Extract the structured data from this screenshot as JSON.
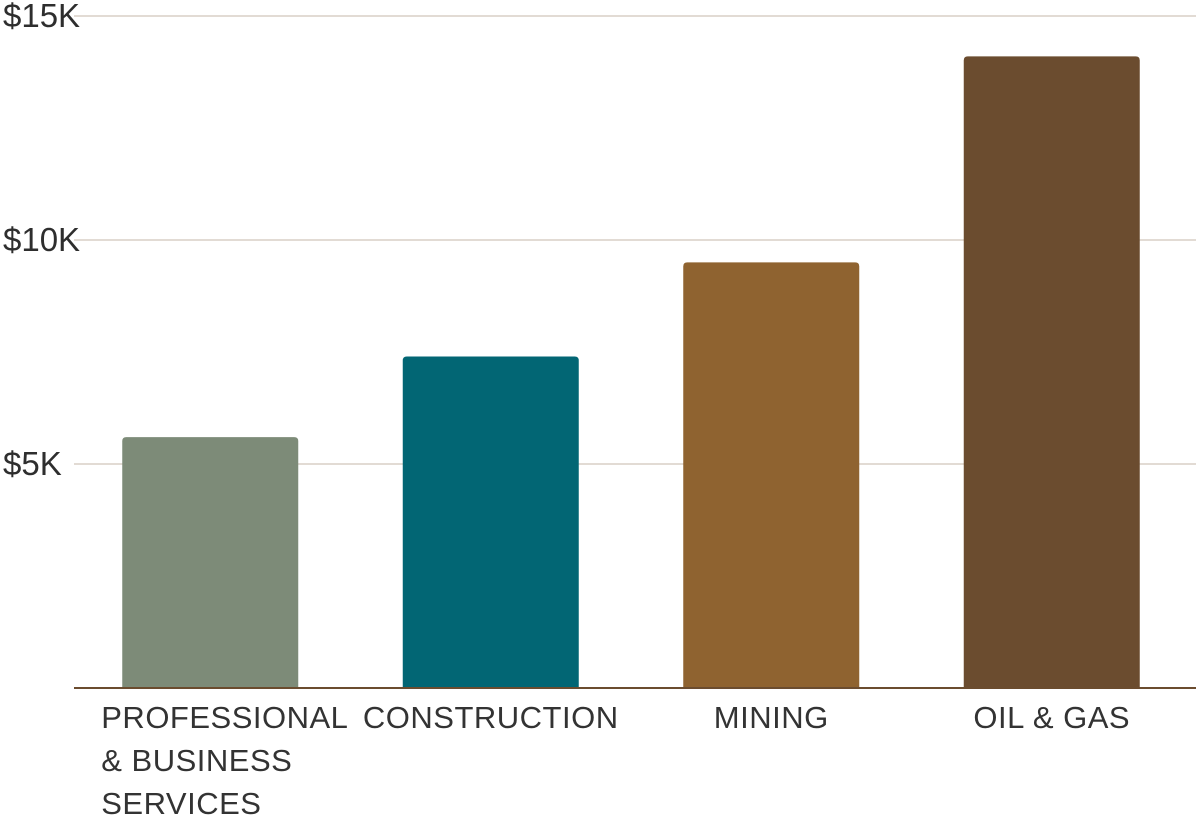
{
  "chart_data": {
    "type": "bar",
    "title": "",
    "xlabel": "",
    "ylabel": "",
    "categories": [
      [
        "PROFESSIONAL",
        "& BUSINESS",
        "SERVICES"
      ],
      [
        "CONSTRUCTION"
      ],
      [
        "MINING"
      ],
      [
        "OIL & GAS"
      ]
    ],
    "values": [
      5600,
      7400,
      9500,
      14100
    ],
    "colors": [
      "#7d8b78",
      "#026674",
      "#8f6330",
      "#6b4c2f"
    ],
    "ylim": [
      0,
      15000
    ],
    "yticks": [
      {
        "value": 5000,
        "label": "$5K"
      },
      {
        "value": 10000,
        "label": "$10K"
      },
      {
        "value": 15000,
        "label": "$15K"
      }
    ],
    "grid": true,
    "gridline_color": "#d9cfc6",
    "axis_color": "#6b4c2f"
  }
}
